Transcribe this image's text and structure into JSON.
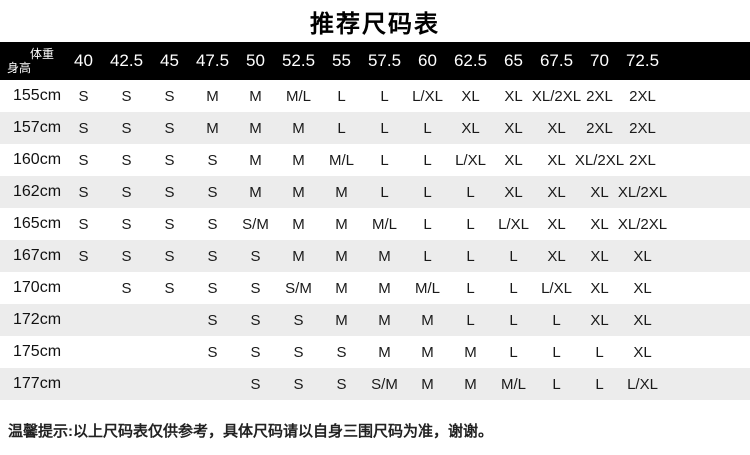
{
  "title": "推荐尺码表",
  "table": {
    "corner": {
      "weight_label": "体重",
      "height_label": "身高"
    },
    "weights": [
      "40",
      "42.5",
      "45",
      "47.5",
      "50",
      "52.5",
      "55",
      "57.5",
      "60",
      "62.5",
      "65",
      "67.5",
      "70",
      "72.5"
    ],
    "rows": [
      {
        "height": "155cm",
        "sizes": [
          "S",
          "S",
          "S",
          "M",
          "M",
          "M/L",
          "L",
          "L",
          "L/XL",
          "XL",
          "XL",
          "XL/2XL",
          "2XL",
          "2XL"
        ]
      },
      {
        "height": "157cm",
        "sizes": [
          "S",
          "S",
          "S",
          "M",
          "M",
          "M",
          "L",
          "L",
          "L",
          "XL",
          "XL",
          "XL",
          "2XL",
          "2XL"
        ]
      },
      {
        "height": "160cm",
        "sizes": [
          "S",
          "S",
          "S",
          "S",
          "M",
          "M",
          "M/L",
          "L",
          "L",
          "L/XL",
          "XL",
          "XL",
          "XL/2XL",
          "2XL"
        ]
      },
      {
        "height": "162cm",
        "sizes": [
          "S",
          "S",
          "S",
          "S",
          "M",
          "M",
          "M",
          "L",
          "L",
          "L",
          "XL",
          "XL",
          "XL",
          "XL/2XL"
        ]
      },
      {
        "height": "165cm",
        "sizes": [
          "S",
          "S",
          "S",
          "S",
          "S/M",
          "M",
          "M",
          "M/L",
          "L",
          "L",
          "L/XL",
          "XL",
          "XL",
          "XL/2XL"
        ]
      },
      {
        "height": "167cm",
        "sizes": [
          "S",
          "S",
          "S",
          "S",
          "S",
          "M",
          "M",
          "M",
          "L",
          "L",
          "L",
          "XL",
          "XL",
          "XL"
        ]
      },
      {
        "height": "170cm",
        "sizes": [
          "",
          "S",
          "S",
          "S",
          "S",
          "S/M",
          "M",
          "M",
          "M/L",
          "L",
          "L",
          "L/XL",
          "XL",
          "XL"
        ]
      },
      {
        "height": "172cm",
        "sizes": [
          "",
          "",
          "",
          "S",
          "S",
          "S",
          "M",
          "M",
          "M",
          "L",
          "L",
          "L",
          "XL",
          "XL"
        ]
      },
      {
        "height": "175cm",
        "sizes": [
          "",
          "",
          "",
          "S",
          "S",
          "S",
          "S",
          "M",
          "M",
          "M",
          "L",
          "L",
          "L",
          "XL"
        ]
      },
      {
        "height": "177cm",
        "sizes": [
          "",
          "",
          "",
          "",
          "S",
          "S",
          "S",
          "S/M",
          "M",
          "M",
          "M/L",
          "L",
          "L",
          "L/XL"
        ]
      }
    ]
  },
  "note": "温馨提示:以上尺码表仅供参考，具体尺码请以自身三围尺码为准，谢谢。",
  "colors": {
    "header_bg": "#000000",
    "header_text": "#ffffff",
    "row_alt_bg": "#ececec",
    "body_text": "#1a1a1a"
  }
}
